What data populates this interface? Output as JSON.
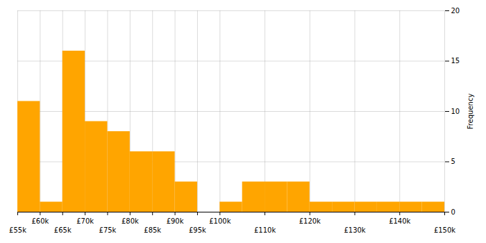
{
  "chart_data": {
    "type": "histogram",
    "bins": [
      55000,
      60000,
      65000,
      70000,
      75000,
      80000,
      85000,
      90000,
      95000,
      100000,
      105000,
      110000,
      115000,
      120000,
      125000,
      130000,
      135000,
      140000,
      145000,
      150000
    ],
    "values": [
      11,
      1,
      16,
      9,
      8,
      6,
      6,
      3,
      0,
      1,
      3,
      3,
      3,
      1,
      1,
      1,
      1,
      1,
      1
    ],
    "color": "#FFA500",
    "ylabel": "Frequency",
    "xlim": [
      55000,
      150000
    ],
    "xticks": [
      {
        "value": 55000,
        "label": "£55k"
      },
      {
        "value": 60000,
        "label": "£60k"
      },
      {
        "value": 65000,
        "label": "£65k"
      },
      {
        "value": 70000,
        "label": "£70k"
      },
      {
        "value": 75000,
        "label": "£75k"
      },
      {
        "value": 80000,
        "label": "£80k"
      },
      {
        "value": 85000,
        "label": "£85k"
      },
      {
        "value": 90000,
        "label": "£90k"
      },
      {
        "value": 95000,
        "label": "£95k"
      },
      {
        "value": 100000,
        "label": "£100k"
      },
      {
        "value": 110000,
        "label": "£110k"
      },
      {
        "value": 120000,
        "label": "£120k"
      },
      {
        "value": 130000,
        "label": "£130k"
      },
      {
        "value": 140000,
        "label": "£140k"
      },
      {
        "value": 150000,
        "label": "£150k"
      }
    ],
    "ylim": [
      0,
      20
    ],
    "yticks": [
      0,
      5,
      10,
      15,
      20
    ],
    "grid": true
  }
}
